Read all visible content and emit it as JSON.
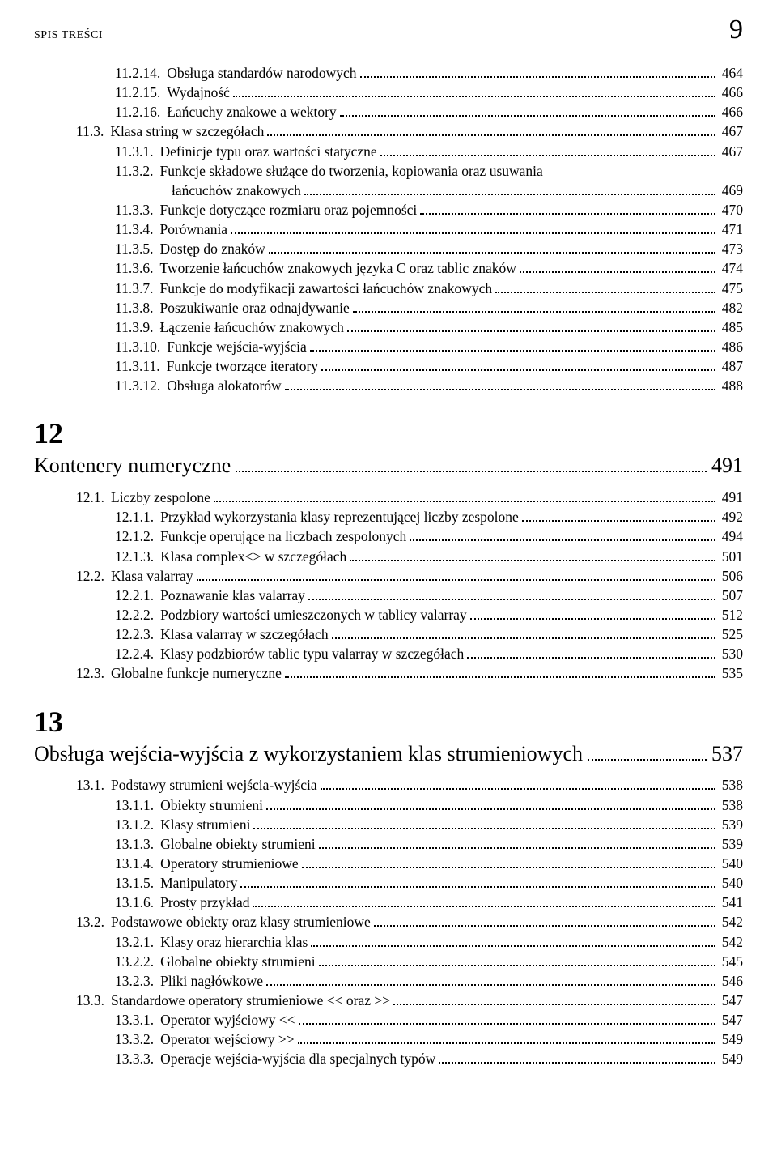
{
  "running_header": {
    "title": "SPIS TREŚCI",
    "page": "9"
  },
  "blocks": [
    {
      "kind": "entry",
      "indent": 2,
      "num": "11.2.14.",
      "title": "Obsługa standardów narodowych",
      "page": "464"
    },
    {
      "kind": "entry",
      "indent": 2,
      "num": "11.2.15.",
      "title": "Wydajność",
      "page": "466"
    },
    {
      "kind": "entry",
      "indent": 2,
      "num": "11.2.16.",
      "title": "Łańcuchy znakowe a wektory",
      "page": "466"
    },
    {
      "kind": "entry",
      "indent": 1,
      "num": "11.3.",
      "title": "Klasa string w szczegółach",
      "page": "467"
    },
    {
      "kind": "entry",
      "indent": 2,
      "num": "11.3.1.",
      "title": "Definicje typu oraz wartości statyczne",
      "page": "467"
    },
    {
      "kind": "entry-2line",
      "indent": 2,
      "num": "11.3.2.",
      "title1": "Funkcje składowe służące do tworzenia, kopiowania oraz usuwania",
      "title2": "łańcuchów znakowych",
      "page": "469"
    },
    {
      "kind": "entry",
      "indent": 2,
      "num": "11.3.3.",
      "title": "Funkcje dotyczące rozmiaru oraz pojemności",
      "page": "470"
    },
    {
      "kind": "entry",
      "indent": 2,
      "num": "11.3.4.",
      "title": "Porównania",
      "page": "471"
    },
    {
      "kind": "entry",
      "indent": 2,
      "num": "11.3.5.",
      "title": "Dostęp do znaków",
      "page": "473"
    },
    {
      "kind": "entry",
      "indent": 2,
      "num": "11.3.6.",
      "title": "Tworzenie łańcuchów znakowych języka C  oraz tablic znaków",
      "page": "474"
    },
    {
      "kind": "entry",
      "indent": 2,
      "num": "11.3.7.",
      "title": "Funkcje do modyfikacji zawartości  łańcuchów znakowych",
      "page": "475"
    },
    {
      "kind": "entry",
      "indent": 2,
      "num": "11.3.8.",
      "title": "Poszukiwanie oraz odnajdywanie",
      "page": "482"
    },
    {
      "kind": "entry",
      "indent": 2,
      "num": "11.3.9.",
      "title": "Łączenie łańcuchów znakowych",
      "page": "485"
    },
    {
      "kind": "entry",
      "indent": 2,
      "num": "11.3.10.",
      "title": "Funkcje wejścia-wyjścia",
      "page": "486"
    },
    {
      "kind": "entry",
      "indent": 2,
      "num": "11.3.11.",
      "title": "Funkcje tworzące iteratory",
      "page": "487"
    },
    {
      "kind": "entry",
      "indent": 2,
      "num": "11.3.12.",
      "title": "Obsługa alokatorów",
      "page": "488"
    },
    {
      "kind": "chapter",
      "num": "12",
      "title": "Kontenery numeryczne",
      "page": "491"
    },
    {
      "kind": "entry",
      "indent": 1,
      "num": "12.1.",
      "title": "Liczby zespolone",
      "page": "491"
    },
    {
      "kind": "entry",
      "indent": 2,
      "num": "12.1.1.",
      "title": "Przykład wykorzystania klasy  reprezentującej liczby zespolone",
      "page": "492"
    },
    {
      "kind": "entry",
      "indent": 2,
      "num": "12.1.2.",
      "title": "Funkcje operujące na liczbach zespolonych",
      "page": "494"
    },
    {
      "kind": "entry",
      "indent": 2,
      "num": "12.1.3.",
      "title": "Klasa complex<> w szczegółach",
      "page": "501"
    },
    {
      "kind": "entry",
      "indent": 1,
      "num": "12.2.",
      "title": "Klasa valarray",
      "page": "506"
    },
    {
      "kind": "entry",
      "indent": 2,
      "num": "12.2.1.",
      "title": "Poznawanie klas valarray",
      "page": "507"
    },
    {
      "kind": "entry",
      "indent": 2,
      "num": "12.2.2.",
      "title": "Podzbiory wartości umieszczonych  w tablicy valarray",
      "page": "512"
    },
    {
      "kind": "entry",
      "indent": 2,
      "num": "12.2.3.",
      "title": "Klasa valarray w szczegółach",
      "page": "525"
    },
    {
      "kind": "entry",
      "indent": 2,
      "num": "12.2.4.",
      "title": "Klasy podzbiorów tablic typu valarray w szczegółach",
      "page": "530"
    },
    {
      "kind": "entry",
      "indent": 1,
      "num": "12.3.",
      "title": "Globalne funkcje numeryczne",
      "page": "535"
    },
    {
      "kind": "chapter",
      "num": "13",
      "title": "Obsługa wejścia-wyjścia z wykorzystaniem klas strumieniowych",
      "page": "537"
    },
    {
      "kind": "entry",
      "indent": 1,
      "num": "13.1.",
      "title": "Podstawy strumieni wejścia-wyjścia",
      "page": "538"
    },
    {
      "kind": "entry",
      "indent": 2,
      "num": "13.1.1.",
      "title": "Obiekty strumieni",
      "page": "538"
    },
    {
      "kind": "entry",
      "indent": 2,
      "num": "13.1.2.",
      "title": "Klasy strumieni",
      "page": "539"
    },
    {
      "kind": "entry",
      "indent": 2,
      "num": "13.1.3.",
      "title": "Globalne obiekty strumieni",
      "page": "539"
    },
    {
      "kind": "entry",
      "indent": 2,
      "num": "13.1.4.",
      "title": "Operatory strumieniowe",
      "page": "540"
    },
    {
      "kind": "entry",
      "indent": 2,
      "num": "13.1.5.",
      "title": "Manipulatory",
      "page": "540"
    },
    {
      "kind": "entry",
      "indent": 2,
      "num": "13.1.6.",
      "title": "Prosty przykład",
      "page": "541"
    },
    {
      "kind": "entry",
      "indent": 1,
      "num": "13.2.",
      "title": "Podstawowe obiekty oraz klasy strumieniowe",
      "page": "542"
    },
    {
      "kind": "entry",
      "indent": 2,
      "num": "13.2.1.",
      "title": "Klasy oraz hierarchia klas",
      "page": "542"
    },
    {
      "kind": "entry",
      "indent": 2,
      "num": "13.2.2.",
      "title": "Globalne obiekty strumieni",
      "page": "545"
    },
    {
      "kind": "entry",
      "indent": 2,
      "num": "13.2.3.",
      "title": "Pliki nagłówkowe",
      "page": "546"
    },
    {
      "kind": "entry",
      "indent": 1,
      "num": "13.3.",
      "title": "Standardowe operatory strumieniowe << oraz >>",
      "page": "547"
    },
    {
      "kind": "entry",
      "indent": 2,
      "num": "13.3.1.",
      "title": "Operator wyjściowy <<",
      "page": "547"
    },
    {
      "kind": "entry",
      "indent": 2,
      "num": "13.3.2.",
      "title": "Operator wejściowy >>",
      "page": "549"
    },
    {
      "kind": "entry",
      "indent": 2,
      "num": "13.3.3.",
      "title": "Operacje wejścia-wyjścia dla specjalnych typów",
      "page": "549"
    }
  ]
}
